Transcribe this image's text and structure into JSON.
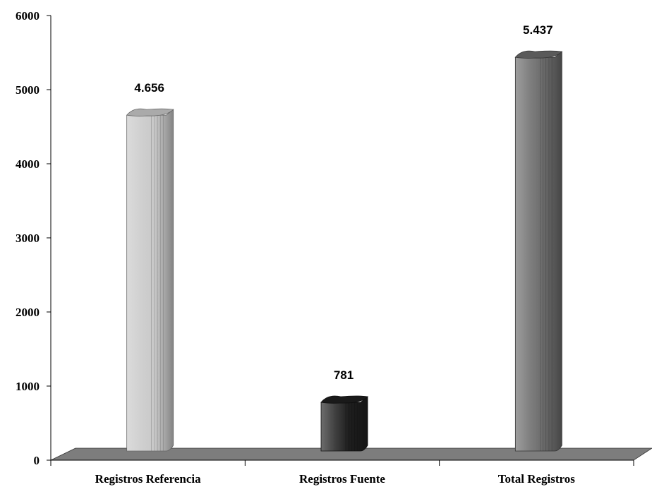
{
  "chart_data": {
    "type": "bar",
    "categories": [
      "Registros Referencia",
      "Registros Fuente",
      "Total Registros"
    ],
    "values": [
      4656,
      781,
      5437
    ],
    "data_labels": [
      "4.656",
      "781",
      "5.437"
    ],
    "y_ticks": [
      "0",
      "1000",
      "2000",
      "3000",
      "4000",
      "5000",
      "6000"
    ],
    "ylim": [
      0,
      6000
    ],
    "title": "",
    "xlabel": "",
    "ylabel": "",
    "grid": false,
    "bar_style": "3d-cylinder",
    "colors": [
      "#c8c8c8",
      "#1e1e1e",
      "#6a6a6a"
    ],
    "floor_color": "#7d7d7d"
  }
}
